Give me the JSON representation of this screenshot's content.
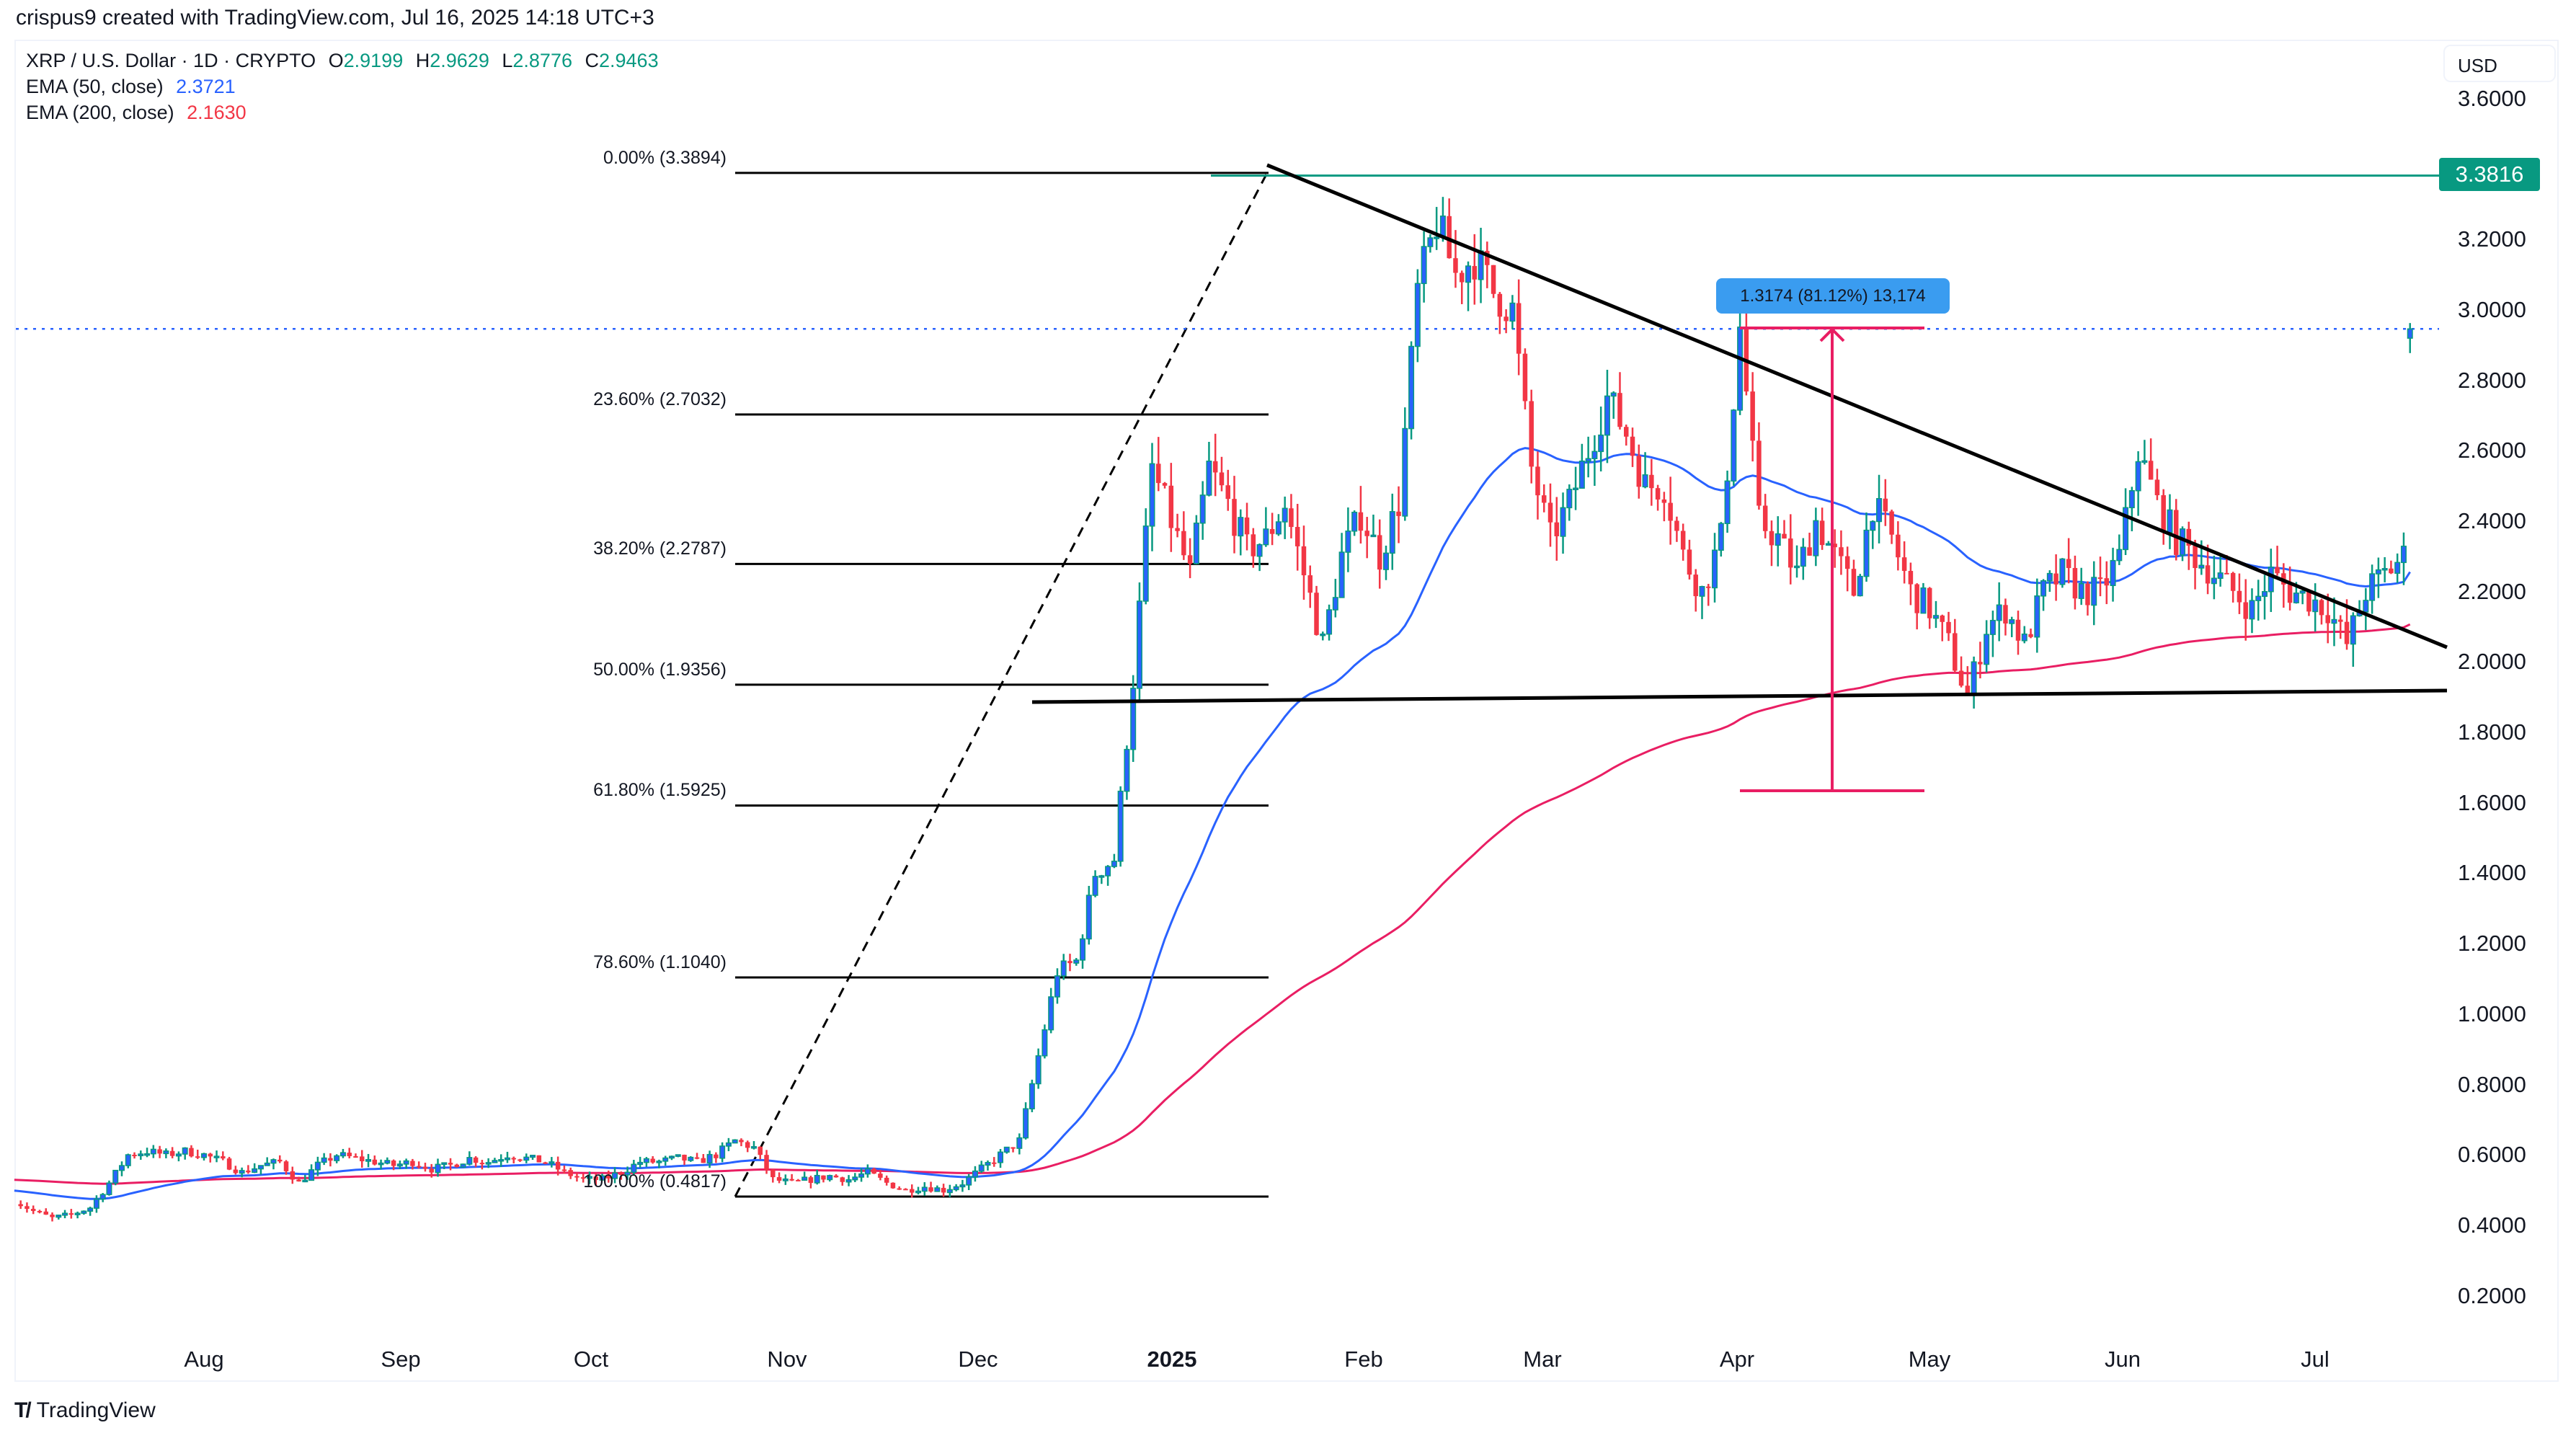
{
  "header": {
    "credit": "crispus9 created with TradingView.com, Jul 16, 2025 14:18 UTC+3"
  },
  "legend": {
    "symbol": "XRP / U.S. Dollar · 1D · CRYPTO",
    "open_label": "O",
    "open": "2.9199",
    "high_label": "H",
    "high": "2.9629",
    "low_label": "L",
    "low": "2.8776",
    "close_label": "C",
    "close": "2.9463",
    "ema50_label": "EMA (50, close)",
    "ema50_value": "2.3721",
    "ema200_label": "EMA (200, close)",
    "ema200_value": "2.1630"
  },
  "axis": {
    "currency": "USD",
    "current_price_tag": "3.3816",
    "y_ticks": [
      "3.6000",
      "3.2000",
      "3.0000",
      "2.8000",
      "2.6000",
      "2.4000",
      "2.2000",
      "2.0000",
      "1.8000",
      "1.6000",
      "1.4000",
      "1.2000",
      "1.0000",
      "0.8000",
      "0.6000",
      "0.4000",
      "0.2000"
    ],
    "x_ticks": [
      {
        "label": "Aug",
        "x": 283,
        "bold": false
      },
      {
        "label": "Sep",
        "x": 556,
        "bold": false
      },
      {
        "label": "Oct",
        "x": 820,
        "bold": false
      },
      {
        "label": "Nov",
        "x": 1092,
        "bold": false
      },
      {
        "label": "Dec",
        "x": 1357,
        "bold": false
      },
      {
        "label": "2025",
        "x": 1626,
        "bold": true
      },
      {
        "label": "Feb",
        "x": 1892,
        "bold": false
      },
      {
        "label": "Mar",
        "x": 2140,
        "bold": false
      },
      {
        "label": "Apr",
        "x": 2410,
        "bold": false
      },
      {
        "label": "May",
        "x": 2677,
        "bold": false
      },
      {
        "label": "Jun",
        "x": 2945,
        "bold": false
      },
      {
        "label": "Jul",
        "x": 3212,
        "bold": false
      }
    ]
  },
  "fibonacci": [
    {
      "label": "0.00% (3.3894)",
      "price": 3.3894
    },
    {
      "label": "23.60% (2.7032)",
      "price": 2.7032
    },
    {
      "label": "38.20% (2.2787)",
      "price": 2.2787
    },
    {
      "label": "50.00% (1.9356)",
      "price": 1.9356
    },
    {
      "label": "61.80% (1.5925)",
      "price": 1.5925
    },
    {
      "label": "78.60% (1.1040)",
      "price": 1.104
    },
    {
      "label": "100.00% (0.4817)",
      "price": 0.4817
    }
  ],
  "measure": {
    "label": "1.3174 (81.12%) 13,174",
    "from_price": 1.624,
    "to_price": 2.9414
  },
  "colors": {
    "up_body": "#2962ff",
    "up_wick": "#089981",
    "down": "#f23645",
    "ema50": "#2962ff",
    "ema200": "#e91e63",
    "resistance_line": "#089981",
    "measure": "#e91e63",
    "measure_box": "#3a9cf0",
    "trendline": "#000000",
    "last_price_line": "#2962ff"
  },
  "branding": {
    "logo_text": "TradingView"
  },
  "chart_data": {
    "type": "candlestick",
    "title": "XRP / U.S. Dollar · 1D · CRYPTO",
    "xlabel": "",
    "ylabel": "USD",
    "ylim": [
      0.1,
      3.7
    ],
    "x_range": [
      "2024-07-02",
      "2025-07-16"
    ],
    "series": [
      {
        "name": "XRP/USD daily close (approx, ~3-day samples)",
        "start": "2024-07-02",
        "step_days": 3,
        "values": [
          0.47,
          0.44,
          0.42,
          0.43,
          0.45,
          0.52,
          0.6,
          0.61,
          0.6,
          0.61,
          0.6,
          0.58,
          0.55,
          0.57,
          0.58,
          0.52,
          0.57,
          0.6,
          0.59,
          0.58,
          0.57,
          0.58,
          0.56,
          0.57,
          0.59,
          0.58,
          0.6,
          0.59,
          0.58,
          0.55,
          0.53,
          0.53,
          0.55,
          0.58,
          0.58,
          0.59,
          0.58,
          0.6,
          0.64,
          0.62,
          0.53,
          0.52,
          0.53,
          0.54,
          0.53,
          0.55,
          0.52,
          0.5,
          0.51,
          0.5,
          0.52,
          0.56,
          0.6,
          0.64,
          0.88,
          1.12,
          1.15,
          1.4,
          1.44,
          1.95,
          2.55,
          2.4,
          2.25,
          2.55,
          2.45,
          2.32,
          2.35,
          2.45,
          2.25,
          2.05,
          2.3,
          2.42,
          2.3,
          2.45,
          3.05,
          3.25,
          3.1,
          3.15,
          3.05,
          3.0,
          2.55,
          2.35,
          2.45,
          2.6,
          2.75,
          2.65,
          2.5,
          2.5,
          2.3,
          2.2,
          2.35,
          2.95,
          2.4,
          2.35,
          2.25,
          2.4,
          2.3,
          2.2,
          2.45,
          2.35,
          2.2,
          2.15,
          2.05,
          1.9,
          2.1,
          2.15,
          2.05,
          2.2,
          2.25,
          2.2,
          2.2,
          2.3,
          2.6,
          2.45,
          2.35,
          2.3,
          2.25,
          2.2,
          2.15,
          2.25,
          2.2,
          2.18,
          2.15,
          2.05,
          2.2,
          2.25,
          2.3,
          2.55,
          2.85,
          2.95,
          2.95
        ]
      }
    ],
    "overlays": {
      "ema50_last": 2.3721,
      "ema200_last": 2.163,
      "ohlc_last": {
        "open": 2.9199,
        "high": 2.9629,
        "low": 2.8776,
        "close": 2.9463
      },
      "horizontal_resistance": 3.3816,
      "descending_trendline": {
        "from": {
          "date": "2025-01-16",
          "price": 3.4
        },
        "to": {
          "date": "2025-07-20",
          "price": 2.18
        }
      },
      "support_line": {
        "from": {
          "date": "2024-12-09",
          "price": 1.88
        },
        "to": {
          "date": "2025-07-20",
          "price": 1.92
        }
      },
      "fib_retracement": {
        "from": {
          "date": "2024-10-25",
          "price": 0.4817
        },
        "to": {
          "date": "2025-01-16",
          "price": 3.3894
        }
      },
      "measure": {
        "from": 1.624,
        "to": 2.9414,
        "change": 1.3174,
        "pct": 81.12,
        "ticks": 13174
      }
    },
    "grid": false,
    "legend_position": "top-left"
  }
}
